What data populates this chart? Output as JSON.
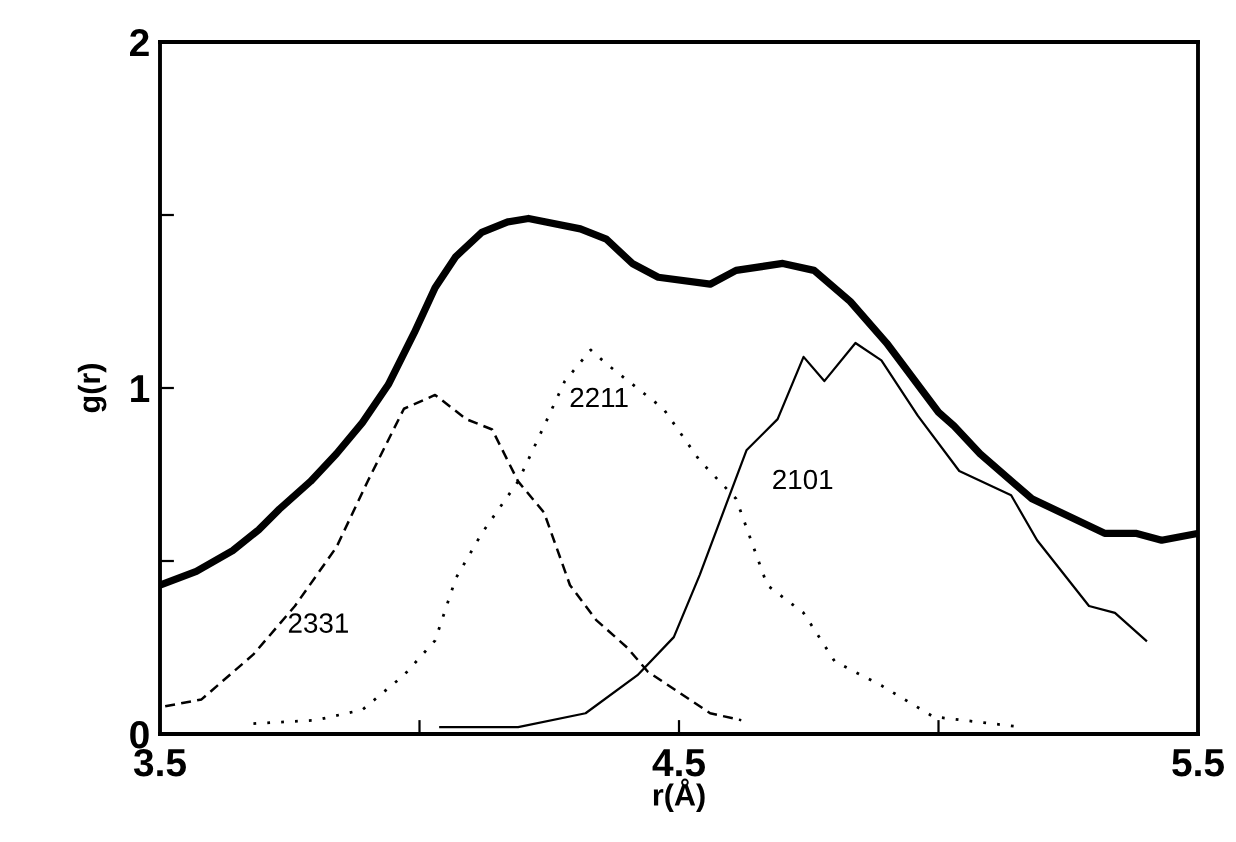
{
  "chart_data": {
    "type": "line",
    "xlabel": "r(Å)",
    "ylabel": "g(r)",
    "xlim": [
      3.5,
      5.5
    ],
    "ylim": [
      0,
      2
    ],
    "xticks": [
      3.5,
      {
        "value": 4.0,
        "label": null
      },
      4.5,
      {
        "value": 5.0,
        "label": null
      },
      5.5
    ],
    "yticks": [
      0,
      {
        "value": 0.5,
        "label": null
      },
      1,
      {
        "value": 1.5,
        "label": null
      },
      2
    ],
    "grid": false,
    "legend": false,
    "marker": "none",
    "series": [
      {
        "color": "#000000",
        "line_style": "solid",
        "x": [
          3.5,
          3.57,
          3.64,
          3.69,
          3.73,
          3.79,
          3.84,
          3.89,
          3.94,
          3.99,
          4.03,
          4.07,
          4.12,
          4.17,
          4.21,
          4.31,
          4.36,
          4.41,
          4.46,
          4.56,
          4.61,
          4.7,
          4.76,
          4.83,
          4.9,
          5.0,
          5.03,
          5.08,
          5.18,
          5.32,
          5.38,
          5.43,
          5.5
        ],
        "values": [
          0.43,
          0.47,
          0.53,
          0.59,
          0.65,
          0.73,
          0.81,
          0.9,
          1.01,
          1.16,
          1.29,
          1.38,
          1.45,
          1.48,
          1.49,
          1.46,
          1.43,
          1.36,
          1.32,
          1.3,
          1.34,
          1.36,
          1.34,
          1.25,
          1.13,
          0.93,
          0.89,
          0.81,
          0.68,
          0.58,
          0.58,
          0.56,
          0.58
        ]
      },
      {
        "name": "2331",
        "color": "#000000",
        "line_style": "dashed",
        "x": [
          3.51,
          3.58,
          3.68,
          3.76,
          3.84,
          3.9,
          3.97,
          4.03,
          4.09,
          4.14,
          4.19,
          4.24,
          4.29,
          4.34,
          4.4,
          4.44,
          4.5,
          4.56,
          4.62
        ],
        "values": [
          0.08,
          0.1,
          0.23,
          0.37,
          0.54,
          0.73,
          0.94,
          0.98,
          0.91,
          0.88,
          0.73,
          0.64,
          0.43,
          0.33,
          0.25,
          0.18,
          0.12,
          0.06,
          0.04
        ]
      },
      {
        "name": "2211",
        "color": "#000000",
        "line_style": "dotted",
        "x": [
          3.68,
          3.8,
          3.89,
          3.97,
          4.03,
          4.07,
          4.12,
          4.19,
          4.24,
          4.28,
          4.33,
          4.36,
          4.47,
          4.54,
          4.61,
          4.67,
          4.74,
          4.8,
          4.89,
          4.99,
          5.16
        ],
        "values": [
          0.03,
          0.04,
          0.07,
          0.17,
          0.27,
          0.45,
          0.58,
          0.73,
          0.89,
          1.02,
          1.11,
          1.07,
          0.94,
          0.79,
          0.68,
          0.43,
          0.35,
          0.21,
          0.14,
          0.05,
          0.02
        ]
      },
      {
        "name": "2101",
        "color": "#000000",
        "line_style": "solid",
        "x": [
          4.04,
          4.19,
          4.32,
          4.42,
          4.49,
          4.54,
          4.59,
          4.63,
          4.69,
          4.74,
          4.78,
          4.84,
          4.89,
          4.96,
          5.04,
          5.14,
          5.19,
          5.29,
          5.34,
          5.4
        ],
        "values": [
          0.02,
          0.02,
          0.06,
          0.17,
          0.28,
          0.46,
          0.66,
          0.82,
          0.91,
          1.09,
          1.02,
          1.13,
          1.08,
          0.92,
          0.76,
          0.69,
          0.56,
          0.37,
          0.35,
          0.27
        ]
      }
    ]
  }
}
